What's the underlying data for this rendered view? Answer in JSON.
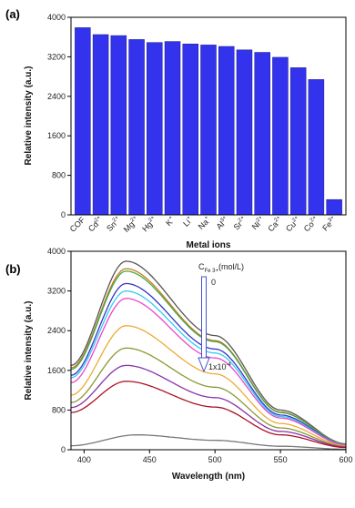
{
  "chart_data": [
    {
      "panel": "(a)",
      "type": "bar",
      "xlabel": "Metal ions",
      "ylabel": "Relative intensity (a.u.)",
      "ylim": [
        0,
        4000
      ],
      "yticks": [
        "0",
        "800",
        "1600",
        "2400",
        "3200",
        "4000"
      ],
      "categories": [
        {
          "base": "COF",
          "sup": ""
        },
        {
          "base": "Cd",
          "sup": "2+"
        },
        {
          "base": "Sn",
          "sup": "2+"
        },
        {
          "base": "Mg",
          "sup": "2+"
        },
        {
          "base": "Hg",
          "sup": "2+"
        },
        {
          "base": "K",
          "sup": "+"
        },
        {
          "base": "Li",
          "sup": "+"
        },
        {
          "base": "Na",
          "sup": "+"
        },
        {
          "base": "Al",
          "sup": "3+"
        },
        {
          "base": "Sr",
          "sup": "2+"
        },
        {
          "base": "Ni",
          "sup": "2+"
        },
        {
          "base": "Ca",
          "sup": "2+"
        },
        {
          "base": "Cu",
          "sup": "2+"
        },
        {
          "base": "Co",
          "sup": "2+"
        },
        {
          "base": "Fe",
          "sup": "3+"
        }
      ],
      "values": [
        3790,
        3650,
        3630,
        3550,
        3490,
        3510,
        3460,
        3440,
        3410,
        3340,
        3290,
        3190,
        2980,
        2740,
        310
      ],
      "bar_color": "#3333ee",
      "grid": false
    },
    {
      "panel": "(b)",
      "type": "line",
      "xlabel": "Wavelength (nm)",
      "ylabel": "Relative intensity (a.u.)",
      "xlim": [
        390,
        600
      ],
      "ylim": [
        0,
        4000
      ],
      "xticks": [
        "400",
        "450",
        "500",
        "550",
        "600"
      ],
      "yticks": [
        "0",
        "800",
        "1600",
        "2400",
        "3200",
        "4000"
      ],
      "peak_wavelength": 432,
      "annotation": {
        "concentration_label": {
          "base": "C",
          "sub": "Fe 3+",
          "suffix": "(mol/L)"
        },
        "arrow_start": "0",
        "arrow_end": "1x10",
        "arrow_end_sup": "-4"
      },
      "series": [
        {
          "color": "#555555",
          "values": [
            [
              390,
              1700
            ],
            [
              432,
              3800
            ],
            [
              500,
              2300
            ],
            [
              550,
              800
            ],
            [
              600,
              120
            ]
          ]
        },
        {
          "color": "#cc7722",
          "values": [
            [
              390,
              1650
            ],
            [
              432,
              3650
            ],
            [
              500,
              2200
            ],
            [
              550,
              760
            ],
            [
              600,
              115
            ]
          ]
        },
        {
          "color": "#44aa44",
          "values": [
            [
              390,
              1620
            ],
            [
              432,
              3600
            ],
            [
              500,
              2180
            ],
            [
              550,
              750
            ],
            [
              600,
              112
            ]
          ]
        },
        {
          "color": "#3333cc",
          "values": [
            [
              390,
              1500
            ],
            [
              432,
              3350
            ],
            [
              500,
              2030
            ],
            [
              550,
              700
            ],
            [
              600,
              105
            ]
          ]
        },
        {
          "color": "#33ccee",
          "values": [
            [
              390,
              1450
            ],
            [
              432,
              3200
            ],
            [
              500,
              1950
            ],
            [
              550,
              670
            ],
            [
              600,
              100
            ]
          ]
        },
        {
          "color": "#ee44cc",
          "values": [
            [
              390,
              1350
            ],
            [
              432,
              3050
            ],
            [
              500,
              1850
            ],
            [
              550,
              640
            ],
            [
              600,
              96
            ]
          ]
        },
        {
          "color": "#eeaa33",
          "values": [
            [
              390,
              1100
            ],
            [
              432,
              2500
            ],
            [
              500,
              1530
            ],
            [
              550,
              530
            ],
            [
              600,
              80
            ]
          ]
        },
        {
          "color": "#889933",
          "values": [
            [
              390,
              950
            ],
            [
              432,
              2050
            ],
            [
              500,
              1260
            ],
            [
              550,
              440
            ],
            [
              600,
              66
            ]
          ]
        },
        {
          "color": "#8833aa",
          "values": [
            [
              390,
              850
            ],
            [
              432,
              1700
            ],
            [
              500,
              1050
            ],
            [
              550,
              370
            ],
            [
              600,
              55
            ]
          ]
        },
        {
          "color": "#aa1122",
          "values": [
            [
              390,
              750
            ],
            [
              432,
              1380
            ],
            [
              500,
              860
            ],
            [
              550,
              300
            ],
            [
              600,
              45
            ]
          ]
        },
        {
          "color": "#777777",
          "values": [
            [
              390,
              80
            ],
            [
              440,
              300
            ],
            [
              500,
              190
            ],
            [
              550,
              70
            ],
            [
              600,
              10
            ]
          ]
        }
      ]
    }
  ]
}
